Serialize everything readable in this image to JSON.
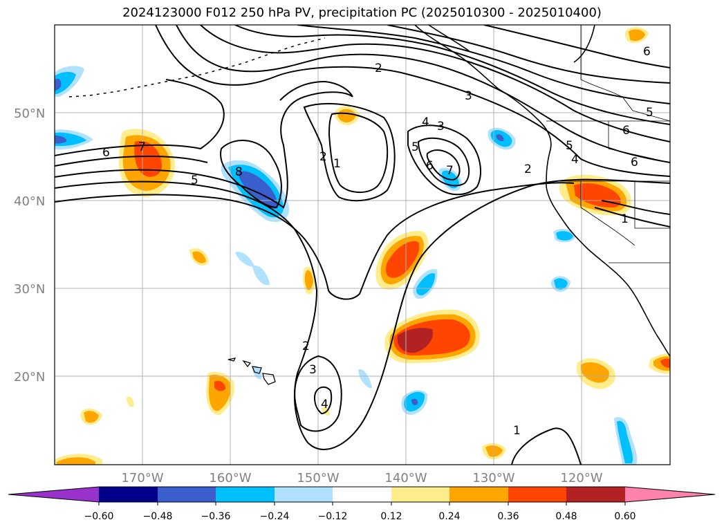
{
  "title": "2024123000 F012 250 hPa PV, precipitation PC (2025010300 - 2025010400)",
  "lat_labels": [
    "50°N",
    "40°N",
    "30°N",
    "20°N"
  ],
  "lon_labels": [
    "170°W",
    "160°W",
    "150°W",
    "140°W",
    "130°W",
    "120°W"
  ],
  "colorbar": {
    "tick_labels": [
      "−0.60",
      "−0.48",
      "−0.36",
      "−0.24",
      "−0.12",
      "0.12",
      "0.24",
      "0.36",
      "0.48",
      "0.60"
    ],
    "colors": [
      "#9932cc",
      "#00008b",
      "#3a5fcd",
      "#00bfff",
      "#b0e2ff",
      "#ffffff",
      "#ffec8b",
      "#ffa500",
      "#ff4500",
      "#b22222",
      "#ff82ab"
    ]
  },
  "contour_labels": [
    "1",
    "2",
    "3",
    "4",
    "5",
    "6",
    "7",
    "8"
  ],
  "map_extent": {
    "lon": [
      -180,
      -110
    ],
    "lat": [
      10,
      60
    ]
  },
  "fill_colors": {
    "yellow": "#ffec8b",
    "orange": "#ffa500",
    "red_orange": "#ff4500",
    "dark_red": "#b22222",
    "light_blue": "#b0e2ff",
    "sky_blue": "#00bfff",
    "blue": "#3a5fcd",
    "purple": "#9932cc"
  }
}
